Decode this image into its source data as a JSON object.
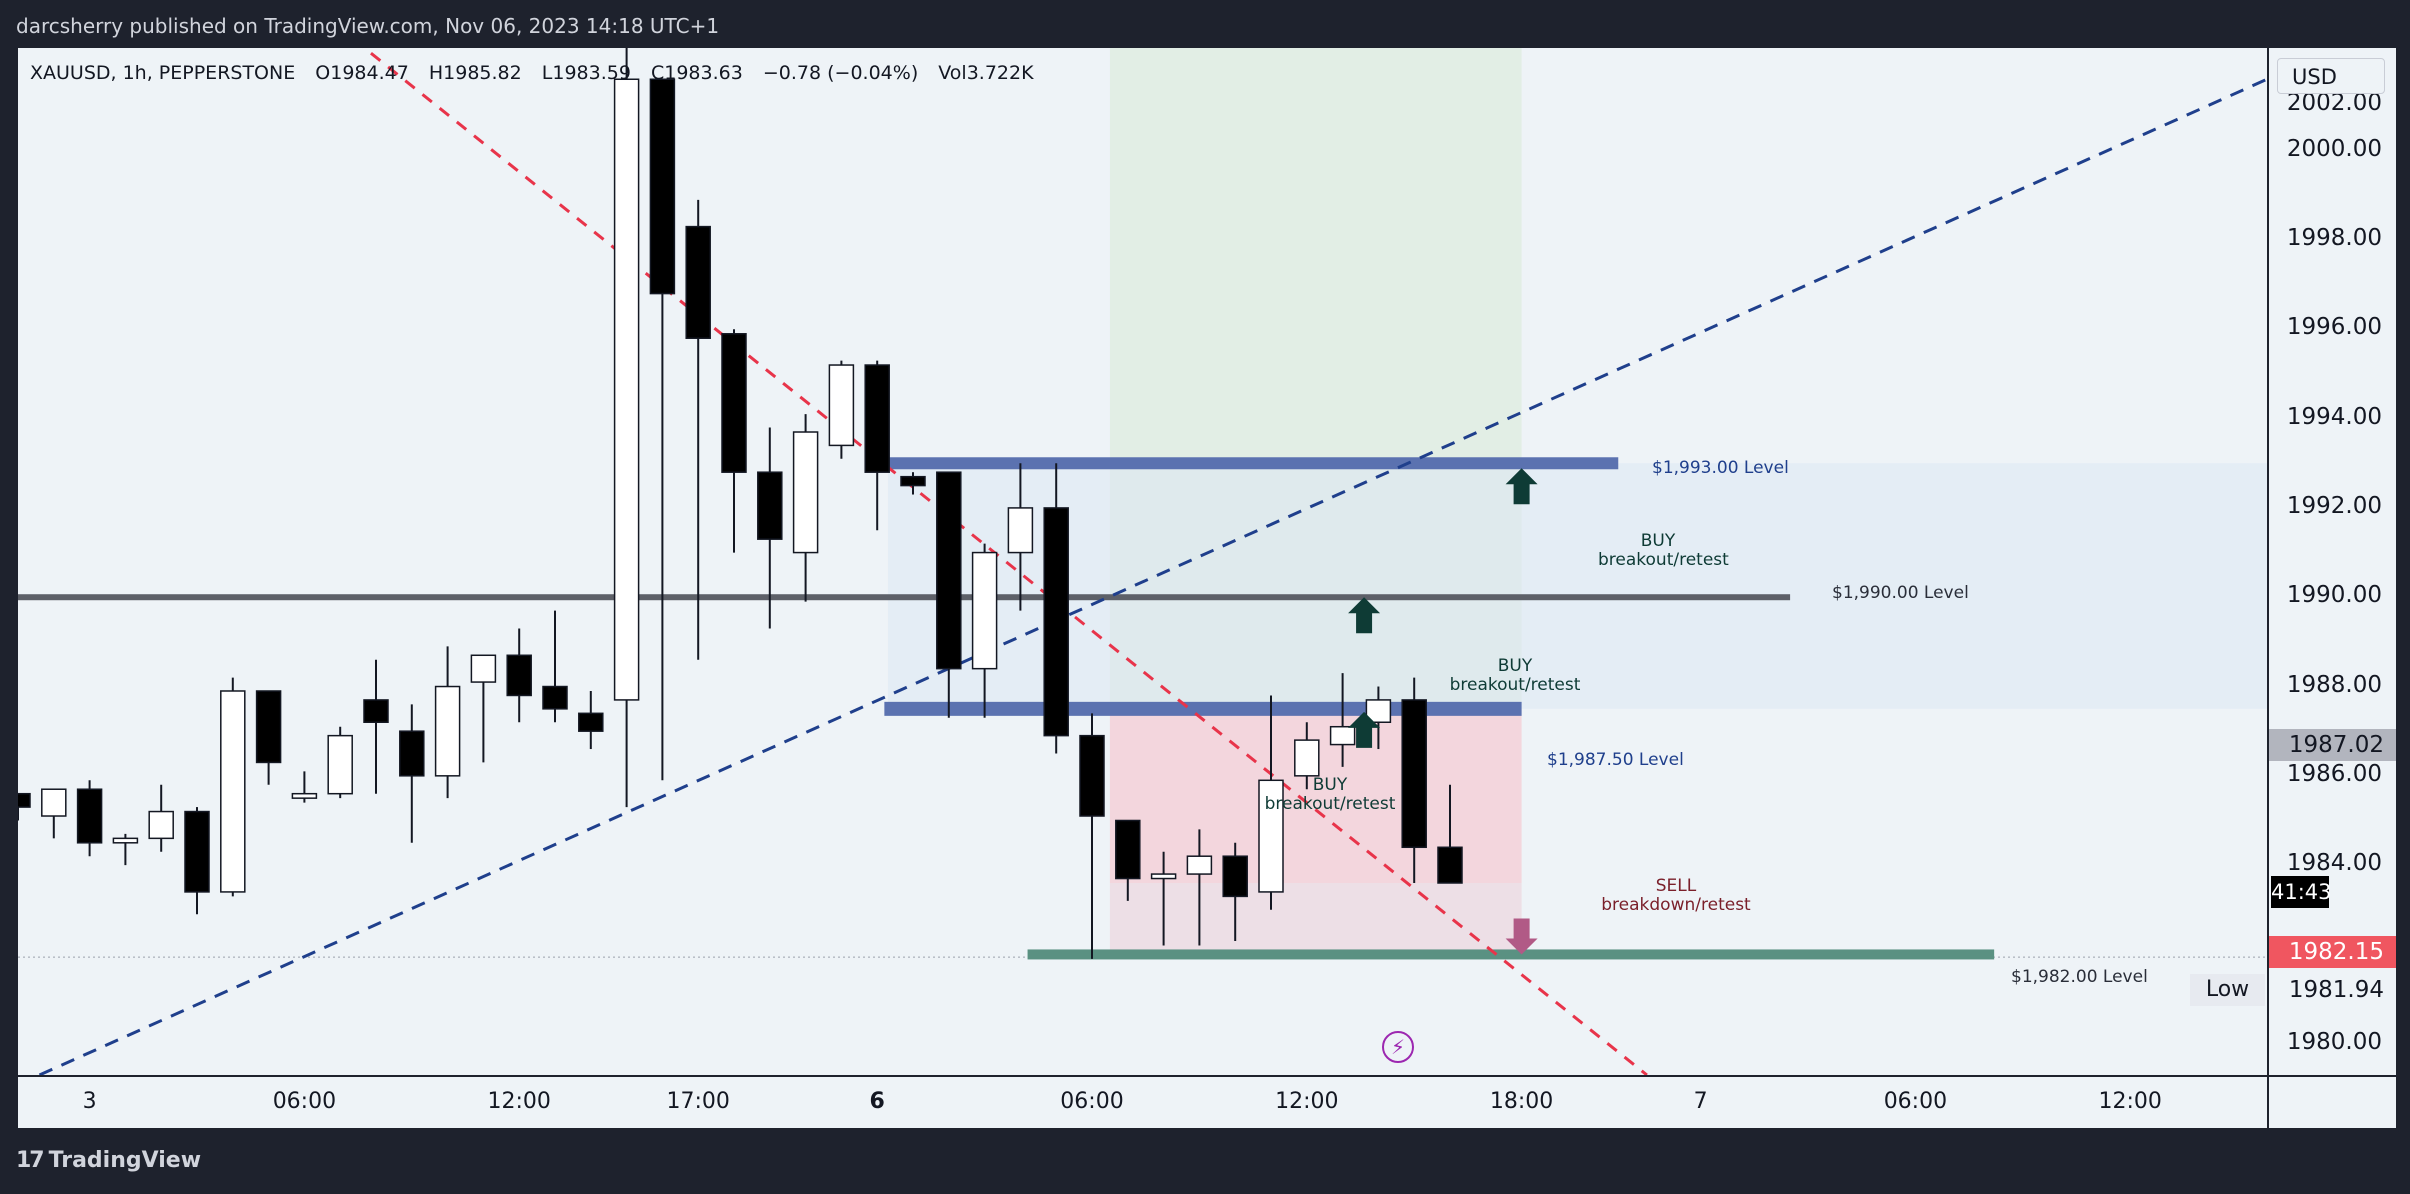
{
  "header": {
    "published": "darcsherry published on TradingView.com, Nov 06, 2023 14:18 UTC+1"
  },
  "legend": {
    "symbol": "XAUUSD, 1h, PEPPERSTONE",
    "open": "O1984.47",
    "high": "H1985.82",
    "low": "L1983.59",
    "close": "C1983.63",
    "change": "−0.78 (−0.04%)",
    "volume": "Vol3.722K"
  },
  "currency": "USD",
  "footer": {
    "brand": "TradingView"
  },
  "price_tags": {
    "level": "1987.02",
    "countdown": "41:43",
    "last": "1982.15",
    "low_label": "Low",
    "low_value": "1981.94",
    "clipped_top": "2002.00"
  },
  "annotations": {
    "lvl1993": "$1,993.00 Level",
    "lvl1990": "$1,990.00 Level",
    "lvl19875": "$1,987.50 Level",
    "lvl1982": "$1,982.00 Level",
    "buy1_title": "BUY",
    "buy1_sub": "breakout/retest",
    "buy2_title": "BUY",
    "buy2_sub": "breakout/retest",
    "buy3_title": "BUY",
    "buy3_sub": "breakout/retest",
    "sell_title": "SELL",
    "sell_sub": "breakdown/retest"
  },
  "colors": {
    "up_fill": "#ffffff",
    "down_fill": "#000000",
    "wick": "#131722",
    "band": "#5b72b0",
    "mid_line": "#5d6068",
    "support": "#5a9182",
    "trend_up": "#1f3f8c",
    "trend_down": "#e8344a",
    "long_zone": "#dcebdc",
    "short_zone": "#f3d3d9",
    "buy_arrow": "#0e3b35",
    "sell_arrow": "#b15a86",
    "last_tag": "#f05660",
    "level_tag": "#b2b5be"
  },
  "chart_data": {
    "type": "candlestick",
    "ylim": [
      1979.3,
      2002.3
    ],
    "yticks": [
      "1980.00",
      "1982.00",
      "1984.00",
      "1986.00",
      "1988.00",
      "1990.00",
      "1992.00",
      "1994.00",
      "1996.00",
      "1998.00",
      "2000.00"
    ],
    "xticks": [
      {
        "label": "3",
        "x": 2,
        "bold": false
      },
      {
        "label": "06:00",
        "x": 8,
        "bold": false
      },
      {
        "label": "12:00",
        "x": 14,
        "bold": false
      },
      {
        "label": "17:00",
        "x": 19,
        "bold": false
      },
      {
        "label": "6",
        "x": 24,
        "bold": true
      },
      {
        "label": "06:00",
        "x": 30,
        "bold": false
      },
      {
        "label": "12:00",
        "x": 36,
        "bold": false
      },
      {
        "label": "18:00",
        "x": 42,
        "bold": false
      },
      {
        "label": "7",
        "x": 47,
        "bold": false
      },
      {
        "label": "06:00",
        "x": 53,
        "bold": false
      },
      {
        "label": "12:00",
        "x": 59,
        "bold": false
      }
    ],
    "candles": [
      [
        0,
        1985.6,
        1985.3,
        1985.6,
        1985.0
      ],
      [
        1,
        1985.1,
        1985.7,
        1985.7,
        1984.6
      ],
      [
        2,
        1985.7,
        1984.5,
        1985.9,
        1984.2
      ],
      [
        3,
        1984.5,
        1984.6,
        1984.7,
        1984.0
      ],
      [
        4,
        1984.6,
        1985.2,
        1985.8,
        1984.3
      ],
      [
        5,
        1985.2,
        1983.4,
        1985.3,
        1982.9
      ],
      [
        6,
        1983.4,
        1987.9,
        1988.2,
        1983.3
      ],
      [
        7,
        1987.9,
        1986.3,
        1987.9,
        1985.8
      ],
      [
        8,
        1985.5,
        1985.6,
        1986.1,
        1985.4
      ],
      [
        9,
        1985.6,
        1986.9,
        1987.1,
        1985.5
      ],
      [
        10,
        1987.7,
        1987.2,
        1988.6,
        1985.6
      ],
      [
        11,
        1987.0,
        1986.0,
        1987.6,
        1984.5
      ],
      [
        12,
        1986.0,
        1988.0,
        1988.9,
        1985.5
      ],
      [
        13,
        1988.1,
        1988.7,
        1988.7,
        1986.3
      ],
      [
        14,
        1988.7,
        1987.8,
        1989.3,
        1987.2
      ],
      [
        15,
        1988.0,
        1987.5,
        1989.7,
        1987.2
      ],
      [
        16,
        1987.4,
        1987.0,
        1987.9,
        1986.6
      ],
      [
        17,
        1987.7,
        2001.6,
        2003.1,
        1985.3
      ],
      [
        18,
        2001.6,
        1996.8,
        2001.6,
        1985.9
      ],
      [
        19,
        1998.3,
        1995.8,
        1998.9,
        1988.6
      ],
      [
        20,
        1995.9,
        1992.8,
        1996.0,
        1991.0
      ],
      [
        21,
        1992.8,
        1991.3,
        1993.8,
        1989.3
      ],
      [
        22,
        1991.0,
        1993.7,
        1994.1,
        1989.9
      ],
      [
        23,
        1993.4,
        1995.2,
        1995.3,
        1993.1
      ],
      [
        24,
        1995.2,
        1992.8,
        1995.3,
        1991.5
      ],
      [
        25,
        1992.7,
        1992.5,
        1992.8,
        1992.3
      ],
      [
        26,
        1992.8,
        1988.4,
        1992.8,
        1987.3
      ],
      [
        27,
        1988.4,
        1991.0,
        1991.2,
        1987.3
      ],
      [
        28,
        1991.0,
        1992.0,
        1993.0,
        1989.7
      ],
      [
        29,
        1992.0,
        1986.9,
        1993.0,
        1986.5
      ],
      [
        30,
        1986.9,
        1985.1,
        1987.4,
        1981.9
      ],
      [
        31,
        1985.0,
        1983.7,
        1985.0,
        1983.2
      ],
      [
        32,
        1983.7,
        1983.8,
        1984.3,
        1982.2
      ],
      [
        33,
        1983.8,
        1984.2,
        1984.8,
        1982.2
      ],
      [
        34,
        1984.2,
        1983.3,
        1984.5,
        1982.3
      ],
      [
        35,
        1983.4,
        1985.9,
        1987.8,
        1983.0
      ],
      [
        36,
        1986.0,
        1986.8,
        1987.2,
        1985.7
      ],
      [
        37,
        1986.7,
        1987.1,
        1988.3,
        1986.2
      ],
      [
        38,
        1987.2,
        1987.7,
        1988.0,
        1986.6
      ],
      [
        39,
        1987.7,
        1984.4,
        1988.2,
        1983.6
      ],
      [
        40,
        1984.4,
        1983.6,
        1985.8,
        1983.6
      ]
    ],
    "levels": [
      1993.0,
      1990.0,
      1987.5,
      1982.0
    ]
  }
}
